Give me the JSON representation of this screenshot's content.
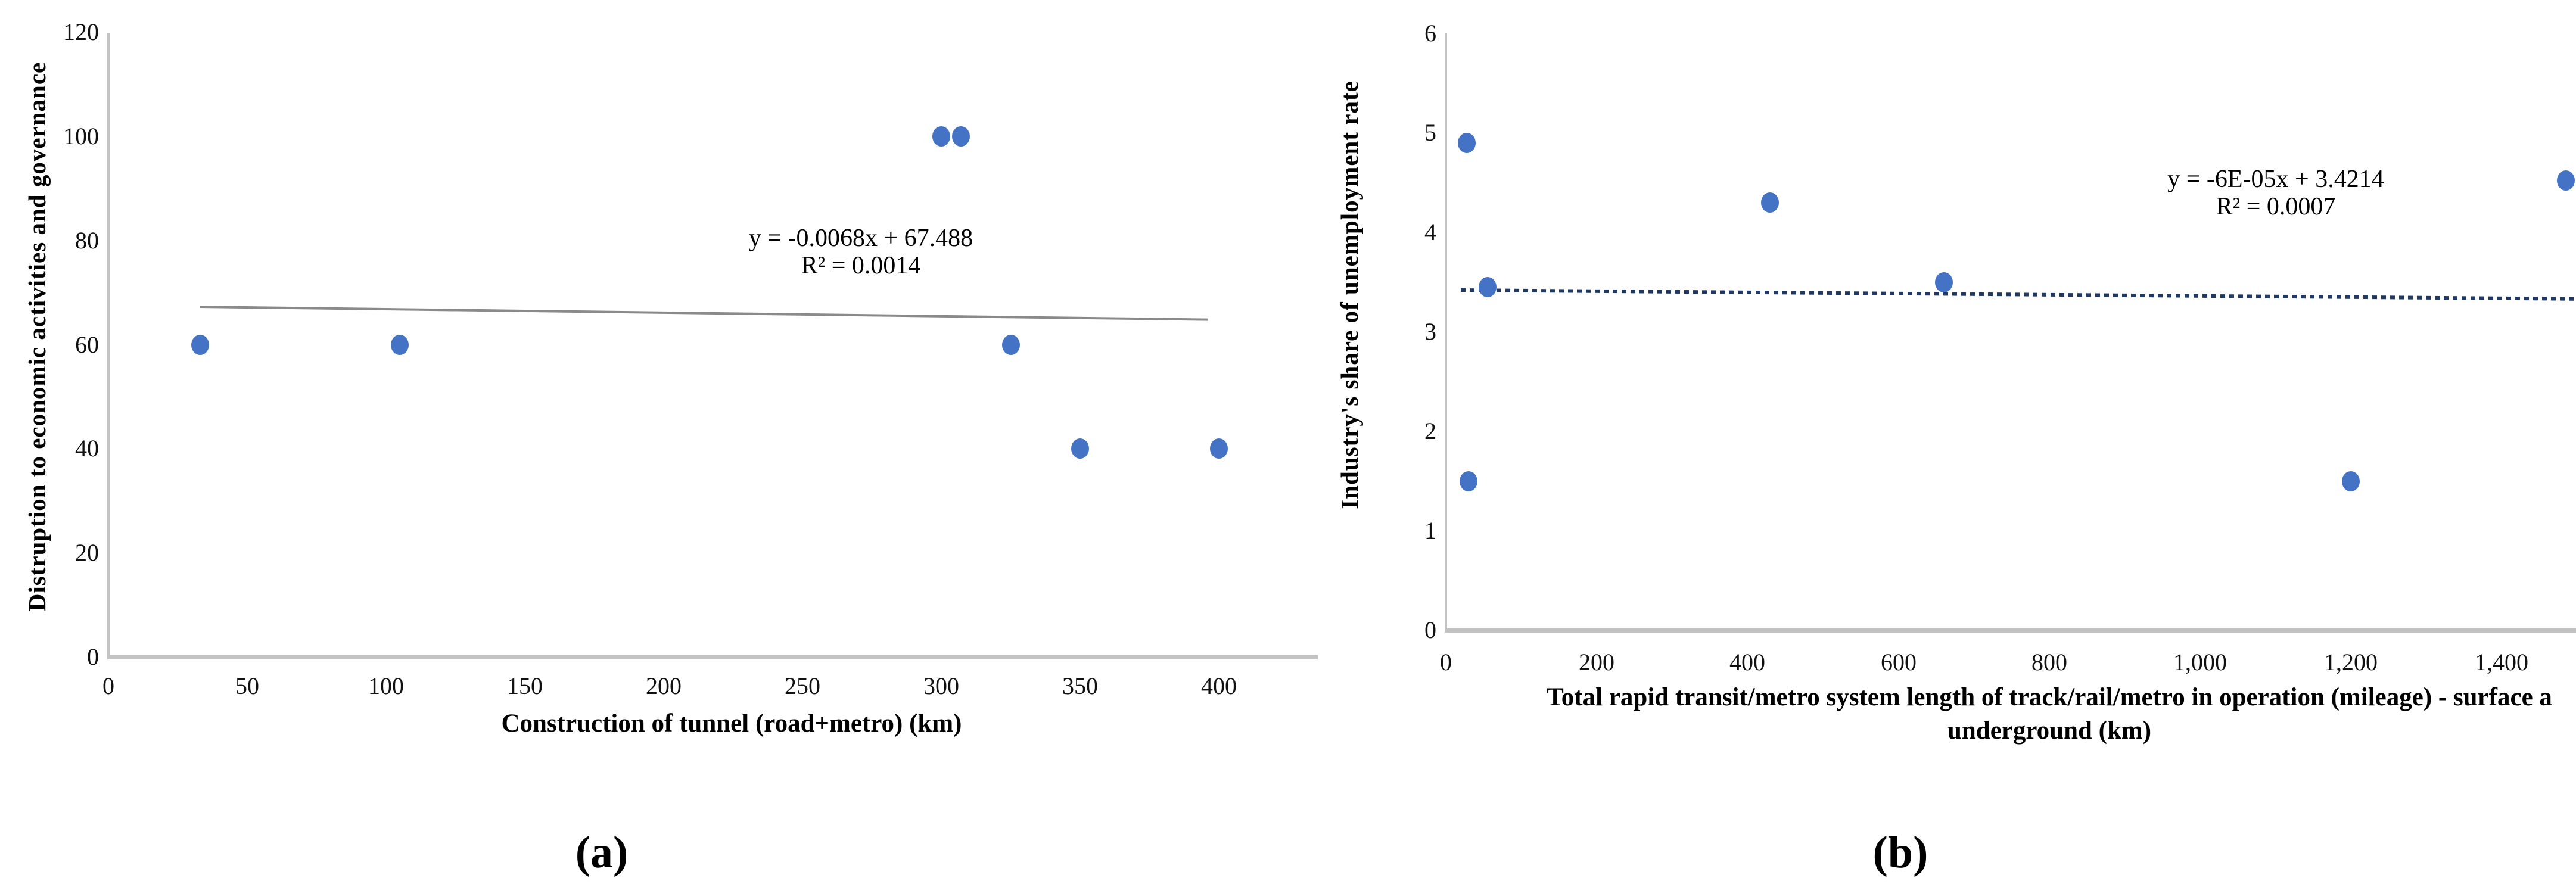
{
  "figure": {
    "background": "#ffffff",
    "panel_count": 2
  },
  "chart_data": [
    {
      "type": "scatter",
      "panel_label": "(a)",
      "title": "",
      "xlabel": "Construction of tunnel (road+metro) (km)",
      "ylabel": "Distruption to economic activities and governance",
      "xlim": [
        0,
        430
      ],
      "ylim": [
        0,
        120
      ],
      "xticks": [
        "0",
        "50",
        "100",
        "150",
        "200",
        "250",
        "300",
        "350",
        "400"
      ],
      "xtick_values": [
        0,
        50,
        100,
        150,
        200,
        250,
        300,
        350,
        400
      ],
      "yticks": [
        "0",
        "20",
        "40",
        "60",
        "80",
        "100",
        "120"
      ],
      "ytick_values": [
        0,
        20,
        40,
        60,
        80,
        100,
        120
      ],
      "points": [
        [
          33,
          60
        ],
        [
          105,
          60
        ],
        [
          300,
          100
        ],
        [
          307,
          100
        ],
        [
          325,
          60
        ],
        [
          350,
          40
        ],
        [
          400,
          40
        ]
      ],
      "trendline": {
        "slope": -0.0068,
        "intercept": 67.488,
        "x_start": 33,
        "x_end": 396,
        "style": "solid",
        "color": "#8a8a8a"
      },
      "equation": "y = -0.0068x + 67.488",
      "r_squared": "R² = 0.0014",
      "point_color": "#4472C4",
      "axis_color": "#c3c3c3",
      "grid": false,
      "legend": null
    },
    {
      "type": "scatter",
      "panel_label": "(b)",
      "title": "",
      "xlabel_line1": "Total rapid transit/metro system length of track/rail/metro in operation (mileage) - surface a",
      "xlabel_line2": "underground (km)",
      "ylabel": "Industry's share of unemployment rate",
      "xlim": [
        0,
        1500
      ],
      "ylim": [
        0,
        6
      ],
      "xticks": [
        "0",
        "200",
        "400",
        "600",
        "800",
        "1,000",
        "1,200",
        "1,400"
      ],
      "xtick_values": [
        0,
        200,
        400,
        600,
        800,
        1000,
        1200,
        1400
      ],
      "yticks": [
        "0",
        "1",
        "2",
        "3",
        "4",
        "5",
        "6"
      ],
      "ytick_values": [
        0,
        1,
        2,
        3,
        4,
        5,
        6
      ],
      "points": [
        [
          28,
          4.9
        ],
        [
          55,
          3.45
        ],
        [
          430,
          4.3
        ],
        [
          660,
          3.5
        ],
        [
          30,
          1.5
        ],
        [
          1200,
          1.5
        ],
        [
          1485,
          4.52
        ]
      ],
      "trendline": {
        "slope": -6e-05,
        "intercept": 3.4214,
        "x_start": 20,
        "x_end": 1500,
        "style": "dotted",
        "color": "#1F3864"
      },
      "equation": "y = -6E-05x + 3.4214",
      "r_squared": "R² = 0.0007",
      "point_color": "#4472C4",
      "axis_color": "#c3c3c3",
      "grid": false,
      "legend": null
    }
  ]
}
